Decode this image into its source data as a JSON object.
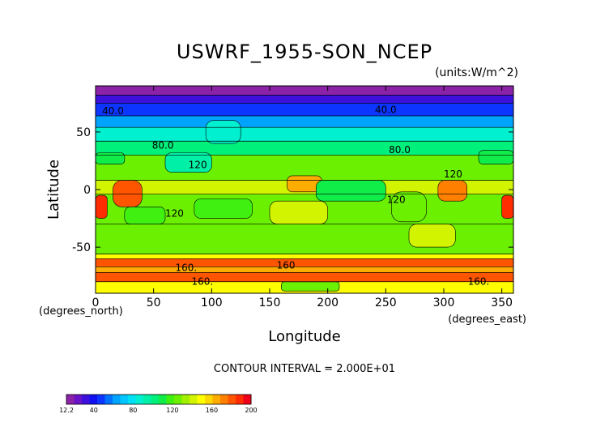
{
  "chart_data": {
    "type": "heatmap",
    "title": "USWRF_1955-SON_NCEP",
    "units": "(units:W/m^2)",
    "xlabel": "Longitude",
    "ylabel": "Latitude",
    "x_unit_label": "(degrees_east)",
    "y_unit_label": "(degrees_north)",
    "xlim": [
      0,
      360
    ],
    "ylim": [
      -90,
      90
    ],
    "x_ticks": [
      0,
      50,
      100,
      150,
      200,
      250,
      300,
      350
    ],
    "y_ticks": [
      -50,
      0,
      50
    ],
    "contour_interval_text": "CONTOUR INTERVAL = 2.000E+01",
    "contour_labels": [
      {
        "text": "40.0",
        "lon": 15,
        "lat": 69
      },
      {
        "text": "40.0",
        "lon": 250,
        "lat": 70
      },
      {
        "text": "80.0",
        "lon": 58,
        "lat": 39
      },
      {
        "text": "80.0",
        "lon": 262,
        "lat": 35
      },
      {
        "text": "120",
        "lon": 88,
        "lat": 22
      },
      {
        "text": "120",
        "lon": 308,
        "lat": 14
      },
      {
        "text": "120",
        "lon": 68,
        "lat": -20
      },
      {
        "text": "120",
        "lon": 259,
        "lat": -8
      },
      {
        "text": "160.",
        "lon": 78,
        "lat": -67
      },
      {
        "text": "160",
        "lon": 164,
        "lat": -65
      },
      {
        "text": "160.",
        "lon": 92,
        "lat": -79
      },
      {
        "text": "160.",
        "lon": 330,
        "lat": -79
      }
    ],
    "lat_bands": [
      {
        "lat": [
          82,
          90
        ],
        "value": 20
      },
      {
        "lat": [
          75,
          82
        ],
        "value": 32
      },
      {
        "lat": [
          64,
          75
        ],
        "value": 48
      },
      {
        "lat": [
          54,
          64
        ],
        "value": 68
      },
      {
        "lat": [
          42,
          54
        ],
        "value": 88
      },
      {
        "lat": [
          30,
          42
        ],
        "value": 108
      },
      {
        "lat": [
          8,
          30
        ],
        "value": 128
      },
      {
        "lat": [
          -4,
          8
        ],
        "value": 146
      },
      {
        "lat": [
          -30,
          -4
        ],
        "value": 130
      },
      {
        "lat": [
          -56,
          -30
        ],
        "value": 126
      },
      {
        "lat": [
          -60,
          -56
        ],
        "value": 150
      },
      {
        "lat": [
          -67,
          -60
        ],
        "value": 186
      },
      {
        "lat": [
          -72,
          -67
        ],
        "value": 168
      },
      {
        "lat": [
          -80,
          -72
        ],
        "value": 186
      },
      {
        "lat": [
          -90,
          -80
        ],
        "value": 150
      }
    ],
    "patches": [
      {
        "lon": [
          15,
          40
        ],
        "lat": [
          -15,
          8
        ],
        "value": 185
      },
      {
        "lon": [
          0,
          10
        ],
        "lat": [
          -25,
          -5
        ],
        "value": 190
      },
      {
        "lon": [
          350,
          360
        ],
        "lat": [
          -25,
          -5
        ],
        "value": 190
      },
      {
        "lon": [
          165,
          195
        ],
        "lat": [
          -2,
          12
        ],
        "value": 170
      },
      {
        "lon": [
          295,
          320
        ],
        "lat": [
          -10,
          8
        ],
        "value": 175
      },
      {
        "lon": [
          255,
          285
        ],
        "lat": [
          -28,
          -2
        ],
        "value": 130
      },
      {
        "lon": [
          190,
          250
        ],
        "lat": [
          -10,
          8
        ],
        "value": 112
      },
      {
        "lon": [
          25,
          60
        ],
        "lat": [
          -30,
          -15
        ],
        "value": 118
      },
      {
        "lon": [
          85,
          135
        ],
        "lat": [
          -25,
          -8
        ],
        "value": 118
      },
      {
        "lon": [
          60,
          100
        ],
        "lat": [
          15,
          32
        ],
        "value": 98
      },
      {
        "lon": [
          95,
          125
        ],
        "lat": [
          40,
          60
        ],
        "value": 92
      },
      {
        "lon": [
          330,
          360
        ],
        "lat": [
          22,
          34
        ],
        "value": 112
      },
      {
        "lon": [
          0,
          25
        ],
        "lat": [
          22,
          32
        ],
        "value": 112
      },
      {
        "lon": [
          270,
          310
        ],
        "lat": [
          -50,
          -30
        ],
        "value": 148
      },
      {
        "lon": [
          150,
          200
        ],
        "lat": [
          -30,
          -10
        ],
        "value": 148
      },
      {
        "lon": [
          160,
          210
        ],
        "lat": [
          -88,
          -80
        ],
        "value": 128
      }
    ],
    "colorbar": {
      "min_label": "12.2",
      "tick_labels": [
        "40",
        "80",
        "120",
        "160",
        "200"
      ],
      "range": [
        12.2,
        200
      ],
      "bins": [
        {
          "value": 16,
          "color": "#8b22a8"
        },
        {
          "value": 24,
          "color": "#6a12c8"
        },
        {
          "value": 32,
          "color": "#3e10dc"
        },
        {
          "value": 40,
          "color": "#1010f0"
        },
        {
          "value": 48,
          "color": "#0c36ff"
        },
        {
          "value": 56,
          "color": "#0070ff"
        },
        {
          "value": 64,
          "color": "#00a4ff"
        },
        {
          "value": 72,
          "color": "#00c8ff"
        },
        {
          "value": 80,
          "color": "#00e0f4"
        },
        {
          "value": 88,
          "color": "#00f0d0"
        },
        {
          "value": 96,
          "color": "#00f0a8"
        },
        {
          "value": 104,
          "color": "#00f07c"
        },
        {
          "value": 112,
          "color": "#10ec48"
        },
        {
          "value": 120,
          "color": "#40f010"
        },
        {
          "value": 128,
          "color": "#6af000"
        },
        {
          "value": 136,
          "color": "#a0f000"
        },
        {
          "value": 144,
          "color": "#d2f400"
        },
        {
          "value": 152,
          "color": "#ffff00"
        },
        {
          "value": 160,
          "color": "#ffd800"
        },
        {
          "value": 168,
          "color": "#ffac00"
        },
        {
          "value": 176,
          "color": "#ff8000"
        },
        {
          "value": 184,
          "color": "#ff5400"
        },
        {
          "value": 192,
          "color": "#ff2c00"
        },
        {
          "value": 200,
          "color": "#f00018"
        }
      ]
    }
  }
}
